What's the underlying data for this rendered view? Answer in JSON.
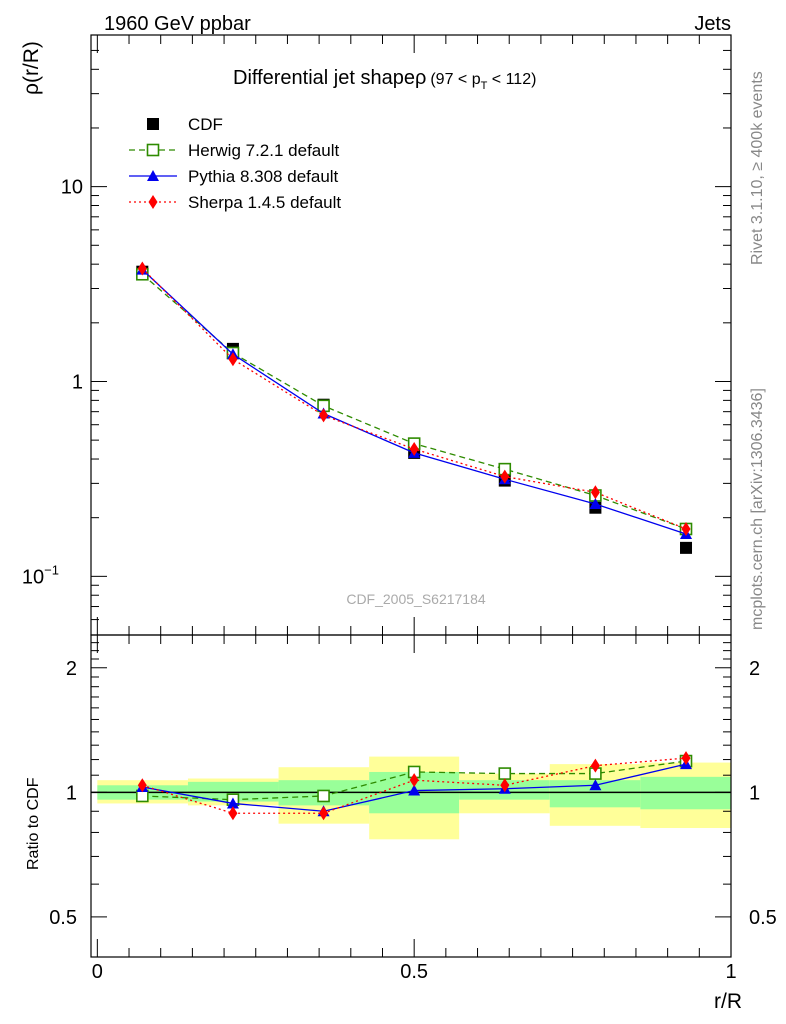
{
  "header": {
    "left": "1960 GeV ppbar",
    "right": "Jets"
  },
  "side_labels": {
    "top": "Rivet 3.1.10, ≥ 400k events",
    "bottom": "mcplots.cern.ch [arXiv:1306.3436]"
  },
  "watermark": "CDF_2005_S6217184",
  "colors": {
    "data": "#000000",
    "herwig": "#2e8b00",
    "pythia": "#0000ee",
    "sherpa": "#ff0000",
    "band_inner": "#99ff99",
    "band_outer": "#ffff99"
  },
  "chart_data": [
    {
      "type": "line",
      "title": "Differential jet shapeρ",
      "title_suffix": "(97 < p",
      "title_sub": "T",
      "title_end": " < 112)",
      "ylabel": "ρ(r/R)",
      "yscale": "log",
      "ylim": [
        0.05,
        60
      ],
      "yticks": [
        {
          "value": 10,
          "label": "10"
        },
        {
          "value": 1,
          "label": "1"
        },
        {
          "value": 0.1,
          "label": "10",
          "sup": "−1"
        }
      ],
      "x": [
        0.071,
        0.214,
        0.357,
        0.5,
        0.643,
        0.786,
        0.929
      ],
      "series": [
        {
          "name": "CDF",
          "key": "cdf",
          "marker": "square-filled",
          "values": [
            3.66,
            1.47,
            0.76,
            0.43,
            0.31,
            0.225,
            0.14
          ]
        },
        {
          "name": "Herwig 7.2.1 default",
          "key": "herwig",
          "marker": "square-open",
          "style": "dashed",
          "values": [
            3.55,
            1.4,
            0.75,
            0.48,
            0.355,
            0.26,
            0.175
          ]
        },
        {
          "name": "Pythia 8.308 default",
          "key": "pythia",
          "marker": "triangle",
          "style": "solid",
          "values": [
            3.75,
            1.38,
            0.685,
            0.43,
            0.315,
            0.235,
            0.165
          ]
        },
        {
          "name": "Sherpa 1.4.5 default",
          "key": "sherpa",
          "marker": "diamond",
          "style": "dotted",
          "values": [
            3.8,
            1.3,
            0.67,
            0.45,
            0.325,
            0.27,
            0.175
          ]
        }
      ]
    },
    {
      "type": "line",
      "ylabel": "Ratio to CDF",
      "xlabel": "r/R",
      "yscale": "log",
      "ylim": [
        0.4,
        2.4
      ],
      "xlim": [
        -0.01,
        1.0
      ],
      "yticks": [
        {
          "value": 2,
          "label": "2"
        },
        {
          "value": 1,
          "label": "1"
        },
        {
          "value": 0.5,
          "label": "0.5"
        }
      ],
      "xticks": [
        {
          "value": 0,
          "label": "0"
        },
        {
          "value": 0.5,
          "label": "0.5"
        },
        {
          "value": 1,
          "label": "1"
        }
      ],
      "bands": [
        {
          "x0": 0.0,
          "x1": 0.143,
          "inner": [
            0.96,
            1.04
          ],
          "outer": [
            0.94,
            1.07
          ]
        },
        {
          "x0": 0.143,
          "x1": 0.286,
          "inner": [
            0.95,
            1.06
          ],
          "outer": [
            0.93,
            1.08
          ]
        },
        {
          "x0": 0.286,
          "x1": 0.429,
          "inner": [
            0.93,
            1.07
          ],
          "outer": [
            0.84,
            1.15
          ]
        },
        {
          "x0": 0.429,
          "x1": 0.571,
          "inner": [
            0.89,
            1.12
          ],
          "outer": [
            0.77,
            1.22
          ]
        },
        {
          "x0": 0.571,
          "x1": 0.714,
          "inner": [
            0.96,
            1.07
          ],
          "outer": [
            0.89,
            1.11
          ]
        },
        {
          "x0": 0.714,
          "x1": 0.857,
          "inner": [
            0.92,
            1.07
          ],
          "outer": [
            0.83,
            1.17
          ]
        },
        {
          "x0": 0.857,
          "x1": 1.0,
          "inner": [
            0.91,
            1.09
          ],
          "outer": [
            0.82,
            1.18
          ]
        }
      ],
      "series": [
        {
          "name": "Herwig 7.2.1 default",
          "key": "herwig",
          "marker": "square-open",
          "style": "dashed",
          "values": [
            0.98,
            0.96,
            0.98,
            1.12,
            1.11,
            1.11,
            1.19
          ]
        },
        {
          "name": "Pythia 8.308 default",
          "key": "pythia",
          "marker": "triangle",
          "style": "solid",
          "values": [
            1.03,
            0.94,
            0.9,
            1.01,
            1.02,
            1.04,
            1.17
          ]
        },
        {
          "name": "Sherpa 1.4.5 default",
          "key": "sherpa",
          "marker": "diamond",
          "style": "dotted",
          "values": [
            1.04,
            0.89,
            0.89,
            1.07,
            1.04,
            1.16,
            1.21
          ]
        }
      ]
    }
  ]
}
